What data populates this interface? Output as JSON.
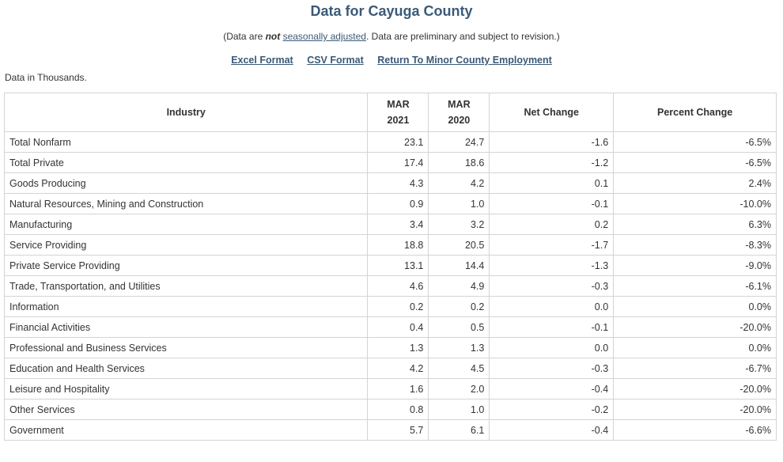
{
  "page": {
    "title": "Data for Cayuga County",
    "notice_prefix": "(Data are ",
    "notice_not": "not",
    "notice_link": "seasonally adjusted",
    "notice_suffix": ". Data are preliminary and subject to revision.)",
    "links": {
      "excel": "Excel Format",
      "csv": "CSV Format",
      "return": "Return To Minor County Employment"
    },
    "units": "Data in Thousands."
  },
  "table": {
    "headers": {
      "industry": "Industry",
      "col1_month": "MAR",
      "col1_year": "2021",
      "col2_month": "MAR",
      "col2_year": "2020",
      "net_change": "Net Change",
      "percent_change": "Percent Change"
    },
    "rows": [
      {
        "industry": "Total Nonfarm",
        "level": 0,
        "y2021": "23.1",
        "y2020": "24.7",
        "net": "-1.6",
        "pct": "-6.5%"
      },
      {
        "industry": "Total Private",
        "level": 0,
        "y2021": "17.4",
        "y2020": "18.6",
        "net": "-1.2",
        "pct": "-6.5%"
      },
      {
        "industry": "Goods Producing",
        "level": 1,
        "y2021": "4.3",
        "y2020": "4.2",
        "net": "0.1",
        "pct": "2.4%"
      },
      {
        "industry": "Natural Resources, Mining and Construction",
        "level": 2,
        "y2021": "0.9",
        "y2020": "1.0",
        "net": "-0.1",
        "pct": "-10.0%"
      },
      {
        "industry": "Manufacturing",
        "level": 2,
        "y2021": "3.4",
        "y2020": "3.2",
        "net": "0.2",
        "pct": "6.3%"
      },
      {
        "industry": "Service Providing",
        "level": 1,
        "y2021": "18.8",
        "y2020": "20.5",
        "net": "-1.7",
        "pct": "-8.3%"
      },
      {
        "industry": "Private Service Providing",
        "level": 1,
        "y2021": "13.1",
        "y2020": "14.4",
        "net": "-1.3",
        "pct": "-9.0%"
      },
      {
        "industry": "Trade, Transportation, and Utilities",
        "level": 2,
        "y2021": "4.6",
        "y2020": "4.9",
        "net": "-0.3",
        "pct": "-6.1%"
      },
      {
        "industry": "Information",
        "level": 2,
        "y2021": "0.2",
        "y2020": "0.2",
        "net": "0.0",
        "pct": "0.0%"
      },
      {
        "industry": "Financial Activities",
        "level": 2,
        "y2021": "0.4",
        "y2020": "0.5",
        "net": "-0.1",
        "pct": "-20.0%"
      },
      {
        "industry": "Professional and Business Services",
        "level": 2,
        "y2021": "1.3",
        "y2020": "1.3",
        "net": "0.0",
        "pct": "0.0%"
      },
      {
        "industry": "Education and Health Services",
        "level": 2,
        "y2021": "4.2",
        "y2020": "4.5",
        "net": "-0.3",
        "pct": "-6.7%"
      },
      {
        "industry": "Leisure and Hospitality",
        "level": 2,
        "y2021": "1.6",
        "y2020": "2.0",
        "net": "-0.4",
        "pct": "-20.0%"
      },
      {
        "industry": "Other Services",
        "level": 2,
        "y2021": "0.8",
        "y2020": "1.0",
        "net": "-0.2",
        "pct": "-20.0%"
      },
      {
        "industry": "Government",
        "level": 0,
        "y2021": "5.7",
        "y2020": "6.1",
        "net": "-0.4",
        "pct": "-6.6%"
      }
    ]
  }
}
